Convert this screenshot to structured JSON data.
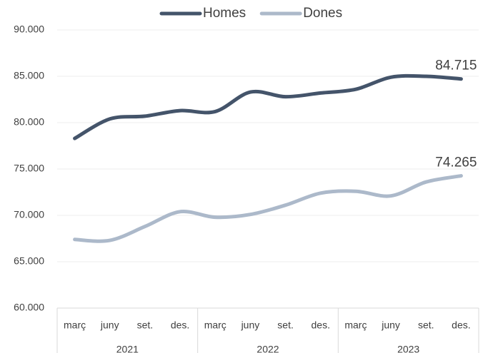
{
  "chart_data": {
    "type": "line",
    "categories": [
      "març",
      "juny",
      "set.",
      "des.",
      "març",
      "juny",
      "set.",
      "des.",
      "març",
      "juny",
      "set.",
      "des."
    ],
    "groups": [
      "2021",
      "2022",
      "2023"
    ],
    "series": [
      {
        "name": "Homes",
        "color": "#44546a",
        "values": [
          78300,
          80400,
          80700,
          81300,
          81200,
          83300,
          82800,
          83200,
          83600,
          84900,
          85000,
          84715
        ],
        "value_labels": [
          null,
          null,
          null,
          null,
          null,
          null,
          null,
          null,
          null,
          null,
          null,
          "84.715"
        ]
      },
      {
        "name": "Dones",
        "color": "#acb9ca",
        "values": [
          67400,
          67300,
          68800,
          70400,
          69800,
          70100,
          71100,
          72400,
          72600,
          72100,
          73600,
          74265
        ],
        "value_labels": [
          null,
          null,
          null,
          null,
          null,
          null,
          null,
          null,
          null,
          null,
          null,
          "74.265"
        ]
      }
    ],
    "ylim": [
      60000,
      90000
    ],
    "yticks": [
      {
        "value": 60000,
        "label": "60.000"
      },
      {
        "value": 65000,
        "label": "65.000"
      },
      {
        "value": 70000,
        "label": "70.000"
      },
      {
        "value": 75000,
        "label": "75.000"
      },
      {
        "value": 80000,
        "label": "80.000"
      },
      {
        "value": 85000,
        "label": "85.000"
      },
      {
        "value": 90000,
        "label": "90.000"
      }
    ],
    "grid": true,
    "legend": "top"
  }
}
